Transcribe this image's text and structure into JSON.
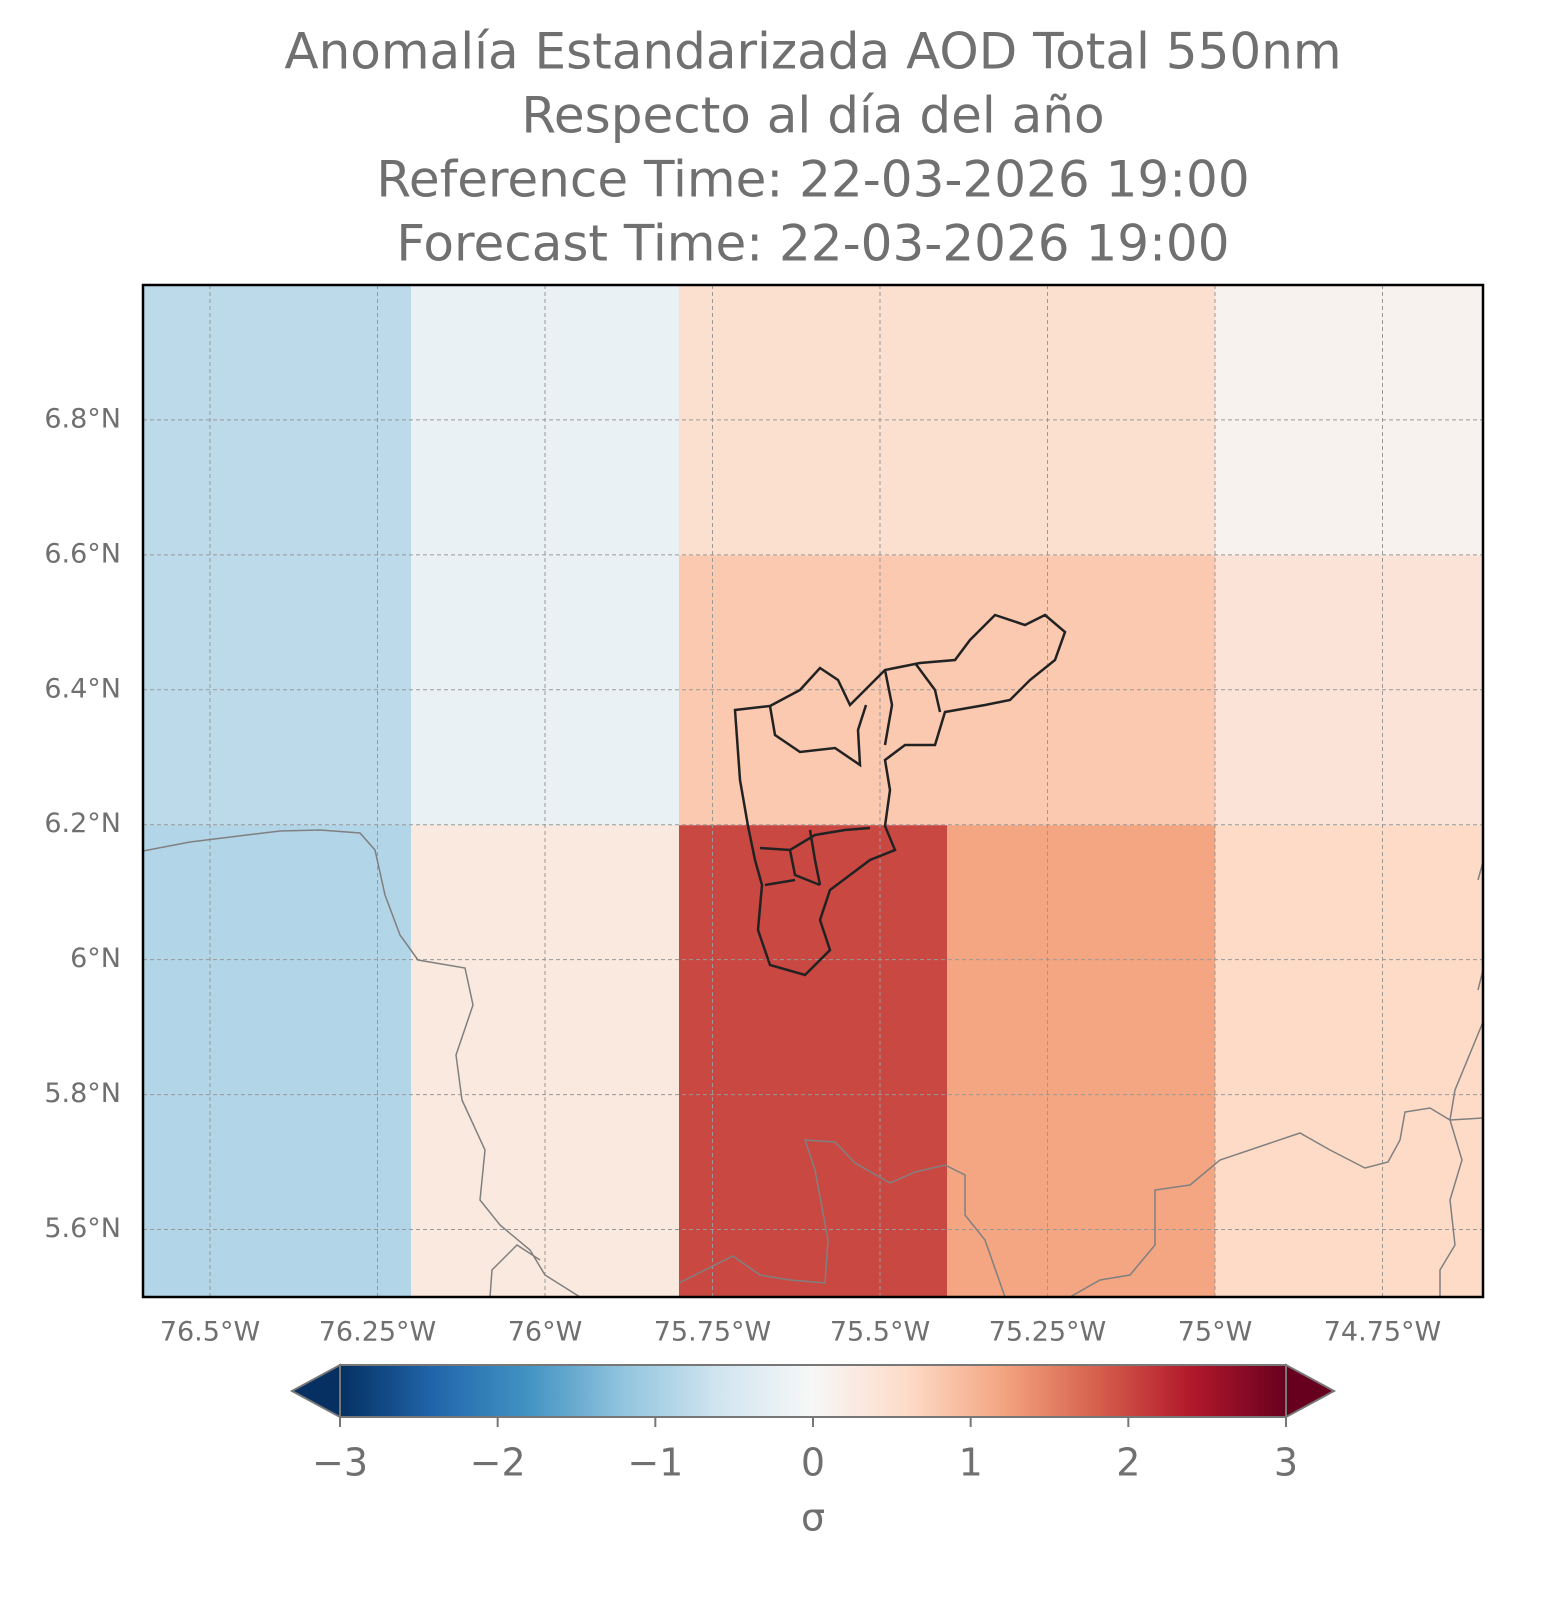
{
  "chart_data": {
    "type": "heatmap",
    "title": [
      "Anomalía Estandarizada AOD Total 550nm",
      "Respecto al día del año",
      "Reference Time: 22-03-2026 19:00",
      "Forecast Time: 22-03-2026 19:00"
    ],
    "x_edges": [
      -76.6,
      -76.2,
      -75.8,
      -75.4,
      -75.0,
      -74.6
    ],
    "y_edges": [
      5.5,
      6.2,
      6.6,
      7.0
    ],
    "values": [
      [
        -0.9,
        0.3,
        2.0,
        1.2,
        0.6
      ],
      [
        -0.8,
        -0.2,
        0.8,
        0.8,
        0.4
      ],
      [
        -0.8,
        -0.2,
        0.5,
        0.5,
        0.1
      ]
    ],
    "xlim": [
      -76.6,
      -74.6
    ],
    "ylim": [
      5.5,
      7.0
    ],
    "xticks": [
      {
        "value": -76.5,
        "label": "76.5°W"
      },
      {
        "value": -76.25,
        "label": "76.25°W"
      },
      {
        "value": -76.0,
        "label": "76°W"
      },
      {
        "value": -75.75,
        "label": "75.75°W"
      },
      {
        "value": -75.5,
        "label": "75.5°W"
      },
      {
        "value": -75.25,
        "label": "75.25°W"
      },
      {
        "value": -75.0,
        "label": "75°W"
      },
      {
        "value": -74.75,
        "label": "74.75°W"
      }
    ],
    "yticks": [
      {
        "value": 5.6,
        "label": "5.6°N"
      },
      {
        "value": 5.8,
        "label": "5.8°N"
      },
      {
        "value": 6.0,
        "label": "6°N"
      },
      {
        "value": 6.2,
        "label": "6.2°N"
      },
      {
        "value": 6.4,
        "label": "6.4°N"
      },
      {
        "value": 6.6,
        "label": "6.6°N"
      },
      {
        "value": 6.8,
        "label": "6.8°N"
      }
    ],
    "grid": true,
    "clim": [
      -3,
      3
    ],
    "colormap": [
      "#053061",
      "#2166ac",
      "#4393c3",
      "#92c5de",
      "#d1e5f0",
      "#f7f7f7",
      "#fddbc7",
      "#f4a582",
      "#d6604d",
      "#b2182b",
      "#67001f"
    ],
    "colorbar_ticks": [
      {
        "value": -3,
        "label": "−3"
      },
      {
        "value": -2,
        "label": "−2"
      },
      {
        "value": -1,
        "label": "−1"
      },
      0,
      1,
      2,
      3
    ],
    "colorbar_label": "σ"
  }
}
